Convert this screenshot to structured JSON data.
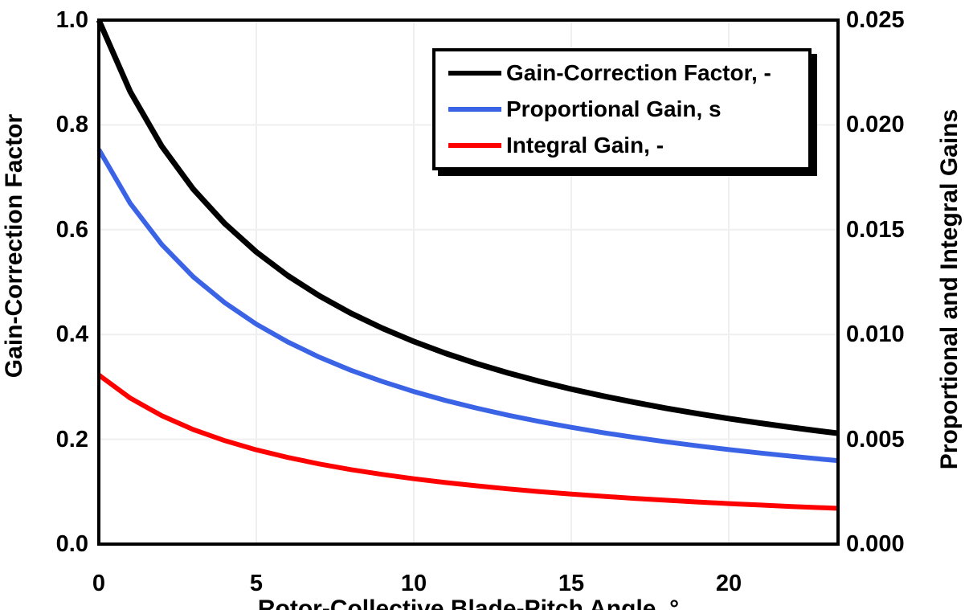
{
  "chart_data": {
    "type": "line",
    "title": "",
    "xlabel": "Rotor-Collective Blade-Pitch Angle, °",
    "ylabel_left": "Gain-Correction Factor",
    "ylabel_right": "Proportional and Integral Gains",
    "xlim": [
      0,
      23.47
    ],
    "ylim_left": [
      0,
      1.0
    ],
    "ylim_right": [
      0,
      0.025
    ],
    "grid": true,
    "grid_color": "#efefef",
    "frame_color": "#000000",
    "legend_position": "top-right-inside",
    "x_ticks": [
      0,
      5,
      10,
      15,
      20
    ],
    "x_tick_labels": [
      "0",
      "5",
      "10",
      "15",
      "20"
    ],
    "y_ticks_left": [
      0,
      0.2,
      0.4,
      0.6,
      0.8,
      1.0
    ],
    "y_tick_labels_left": [
      "0.0",
      "0.2",
      "0.4",
      "0.6",
      "0.8",
      "1.0"
    ],
    "y_ticks_right": [
      0,
      0.005,
      0.01,
      0.015,
      0.02,
      0.025
    ],
    "y_tick_labels_right": [
      "0.000",
      "0.005",
      "0.010",
      "0.015",
      "0.020",
      "0.025"
    ],
    "x": [
      0,
      1,
      2,
      3,
      4,
      5,
      6,
      7,
      8,
      9,
      10,
      11,
      12,
      13,
      14,
      15,
      16,
      17,
      18,
      19,
      20,
      21,
      22,
      23,
      23.47
    ],
    "series": [
      {
        "name": "Gain-Correction Factor, -",
        "axis": "left",
        "color": "#000000",
        "width": 7,
        "values": [
          1.0,
          0.8631,
          0.7591,
          0.6773,
          0.6116,
          0.5575,
          0.5123,
          0.4738,
          0.4406,
          0.4119,
          0.3866,
          0.3642,
          0.3443,
          0.3265,
          0.3104,
          0.2959,
          0.2826,
          0.2705,
          0.2593,
          0.2491,
          0.2396,
          0.2308,
          0.2226,
          0.2149,
          0.2115
        ]
      },
      {
        "name": "Proportional Gain, s",
        "axis": "right",
        "color": "#3b63e6",
        "width": 6,
        "values": [
          0.018827,
          0.016249,
          0.014291,
          0.012751,
          0.011514,
          0.010496,
          0.009645,
          0.00892,
          0.008295,
          0.007755,
          0.007278,
          0.006857,
          0.006482,
          0.006147,
          0.005844,
          0.005571,
          0.00532,
          0.005092,
          0.004882,
          0.004689,
          0.004511,
          0.004345,
          0.004191,
          0.004046,
          0.003982
        ]
      },
      {
        "name": "Integral Gain, -",
        "axis": "right",
        "color": "#ff0000",
        "width": 6,
        "values": [
          0.008069,
          0.006964,
          0.006125,
          0.005465,
          0.004934,
          0.004499,
          0.004134,
          0.003823,
          0.003555,
          0.003323,
          0.003119,
          0.002939,
          0.002778,
          0.002634,
          0.002505,
          0.002388,
          0.00228,
          0.002182,
          0.002092,
          0.00201,
          0.001933,
          0.001862,
          0.001796,
          0.001734,
          0.001707
        ]
      }
    ]
  }
}
